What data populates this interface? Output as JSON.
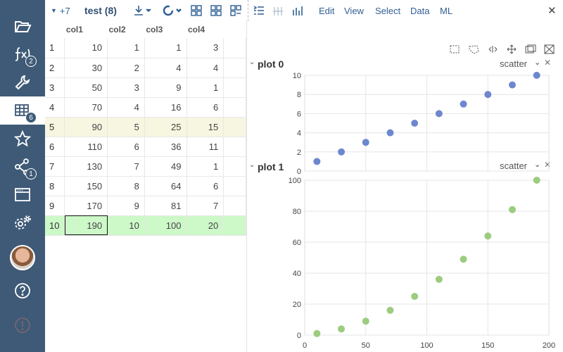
{
  "toolbar": {
    "plus_label": "+7",
    "dataset_label": "test (8)",
    "menu": [
      "Edit",
      "View",
      "Select",
      "Data",
      "ML"
    ]
  },
  "sidebar": {
    "items": [
      {
        "icon": "folder-open-icon"
      },
      {
        "icon": "function-icon",
        "badge": "2"
      },
      {
        "icon": "wrench-icon"
      },
      {
        "icon": "table-icon",
        "badge": "6"
      },
      {
        "icon": "star-icon"
      },
      {
        "icon": "share-icon",
        "badge": "1"
      },
      {
        "icon": "window-icon"
      },
      {
        "icon": "settings-icon"
      },
      {
        "icon": "avatar"
      },
      {
        "icon": "help-icon"
      },
      {
        "icon": "alert-icon"
      }
    ]
  },
  "table": {
    "columns": [
      "col1",
      "col2",
      "col3",
      "col4"
    ],
    "rows": [
      [
        "1",
        "10",
        "1",
        "1",
        "3"
      ],
      [
        "2",
        "30",
        "2",
        "4",
        "4"
      ],
      [
        "3",
        "50",
        "3",
        "9",
        "1"
      ],
      [
        "4",
        "70",
        "4",
        "16",
        "6"
      ],
      [
        "5",
        "90",
        "5",
        "25",
        "15"
      ],
      [
        "6",
        "110",
        "6",
        "36",
        "11"
      ],
      [
        "7",
        "130",
        "7",
        "49",
        "1"
      ],
      [
        "8",
        "150",
        "8",
        "64",
        "6"
      ],
      [
        "9",
        "170",
        "9",
        "81",
        "7"
      ],
      [
        "10",
        "190",
        "10",
        "100",
        "20"
      ]
    ]
  },
  "plots": [
    {
      "title": "plot 0",
      "type_label": "scatter"
    },
    {
      "title": "plot 1",
      "type_label": "scatter"
    }
  ],
  "chart_data": [
    {
      "type": "scatter",
      "title": "plot 0",
      "x": [
        10,
        30,
        50,
        70,
        90,
        110,
        130,
        150,
        170,
        190
      ],
      "y": [
        1,
        2,
        3,
        4,
        5,
        6,
        7,
        8,
        9,
        10
      ],
      "xlim": [
        0,
        200
      ],
      "ylim": [
        0,
        10
      ],
      "yticks": [
        0,
        2,
        4,
        6,
        8,
        10
      ],
      "color": "#6d87cf",
      "grid": true
    },
    {
      "type": "scatter",
      "title": "plot 1",
      "x": [
        10,
        30,
        50,
        70,
        90,
        110,
        130,
        150,
        170,
        190
      ],
      "y": [
        1,
        4,
        9,
        16,
        25,
        36,
        49,
        64,
        81,
        100
      ],
      "xlim": [
        0,
        200
      ],
      "ylim": [
        0,
        100
      ],
      "xticks": [
        0,
        50,
        100,
        150,
        200
      ],
      "yticks": [
        0,
        20,
        40,
        60,
        80,
        100
      ],
      "color": "#9ccc7f",
      "grid": true
    }
  ]
}
